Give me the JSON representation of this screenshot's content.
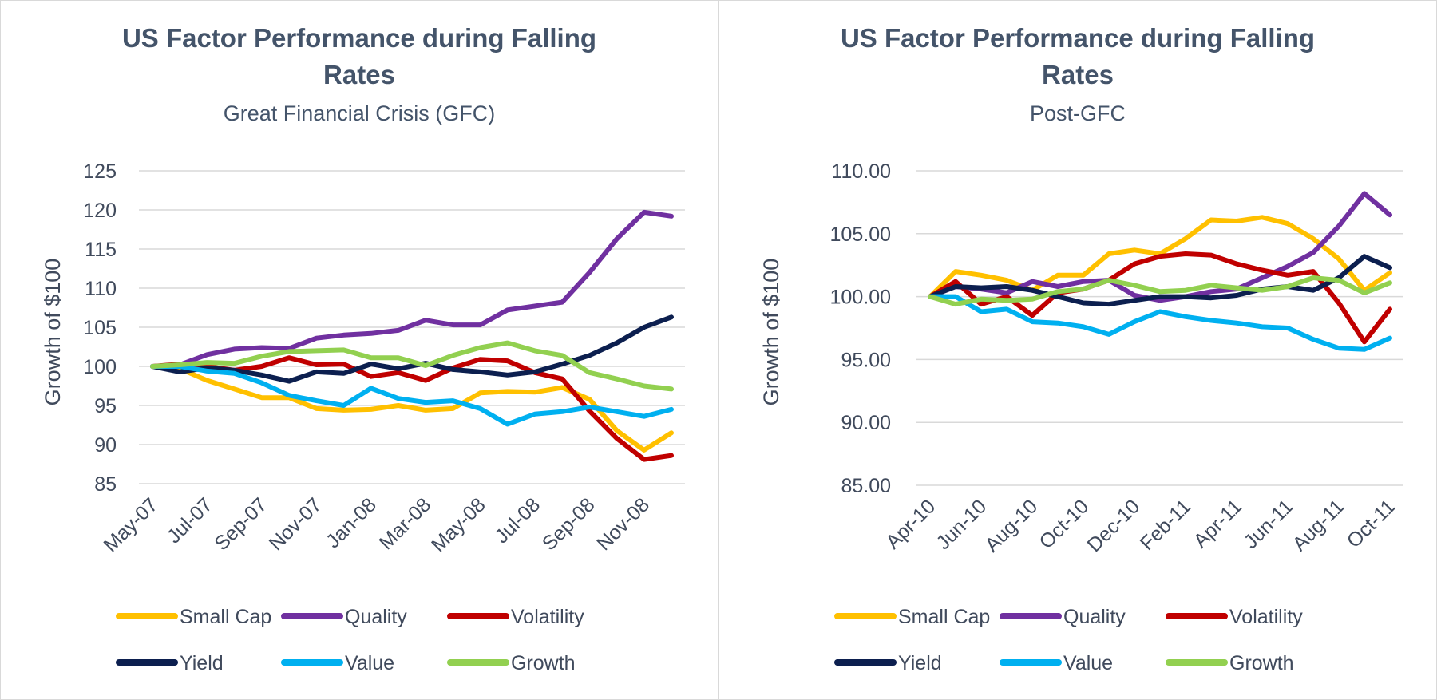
{
  "chart_data": [
    {
      "type": "line",
      "title": "US Factor Performance during Falling Rates",
      "subtitle": "Great Financial Crisis (GFC)",
      "xlabel": "",
      "ylabel": "Growth of $100",
      "ylim": [
        85,
        125
      ],
      "yticks": [
        "125",
        "120",
        "115",
        "110",
        "105",
        "100",
        "95",
        "90",
        "85"
      ],
      "ytick_values": [
        125,
        120,
        115,
        110,
        105,
        100,
        95,
        90,
        85
      ],
      "x": [
        "May-07",
        "Jun-07",
        "Jul-07",
        "Aug-07",
        "Sep-07",
        "Oct-07",
        "Nov-07",
        "Dec-07",
        "Jan-08",
        "Feb-08",
        "Mar-08",
        "Apr-08",
        "May-08",
        "Jun-08",
        "Jul-08",
        "Aug-08",
        "Sep-08",
        "Oct-08",
        "Nov-08",
        "Dec-08"
      ],
      "xtick_labels": [
        "May-07",
        "Jul-07",
        "Sep-07",
        "Nov-07",
        "Jan-08",
        "Mar-08",
        "May-08",
        "Jul-08",
        "Sep-08",
        "Nov-08"
      ],
      "legend_position": "bottom",
      "grid": true,
      "series": [
        {
          "name": "Small Cap",
          "color": "#ffc000",
          "values": [
            100,
            99.7,
            98.2,
            97.1,
            96,
            96,
            94.6,
            94.4,
            94.5,
            95,
            94.4,
            94.6,
            96.6,
            96.8,
            96.7,
            97.3,
            95.8,
            91.8,
            89.3,
            91.5
          ]
        },
        {
          "name": "Quality",
          "color": "#7030a0",
          "values": [
            100,
            100.2,
            101.5,
            102.2,
            102.4,
            102.3,
            103.6,
            104,
            104.2,
            104.6,
            105.9,
            105.3,
            105.3,
            107.2,
            107.7,
            108.2,
            112,
            116.3,
            119.7,
            119.2
          ]
        },
        {
          "name": "Volatility",
          "color": "#c00000",
          "values": [
            100,
            100.3,
            100,
            99.5,
            100,
            101.1,
            100.2,
            100.3,
            98.7,
            99.2,
            98.2,
            99.8,
            100.9,
            100.7,
            99.2,
            98.4,
            94.3,
            90.8,
            88.1,
            88.6
          ]
        },
        {
          "name": "Yield",
          "color": "#0c1f4f",
          "values": [
            100,
            99.3,
            99.8,
            99.5,
            98.9,
            98.1,
            99.3,
            99.1,
            100.3,
            99.7,
            100.4,
            99.6,
            99.3,
            98.9,
            99.3,
            100.3,
            101.4,
            103,
            105,
            106.3
          ]
        },
        {
          "name": "Value",
          "color": "#00b0f0",
          "values": [
            100,
            100,
            99.4,
            99.1,
            97.9,
            96.3,
            95.6,
            95,
            97.2,
            95.9,
            95.4,
            95.6,
            94.6,
            92.6,
            93.9,
            94.2,
            94.8,
            94.2,
            93.6,
            94.5
          ]
        },
        {
          "name": "Growth",
          "color": "#92d050",
          "values": [
            100,
            100.2,
            100.5,
            100.4,
            101.3,
            101.9,
            102,
            102.1,
            101.1,
            101.1,
            100.1,
            101.4,
            102.4,
            103,
            102,
            101.4,
            99.2,
            98.4,
            97.5,
            97.1
          ]
        }
      ]
    },
    {
      "type": "line",
      "title": "US Factor Performance during Falling Rates",
      "subtitle": "Post-GFC",
      "xlabel": "",
      "ylabel": "Growth of $100",
      "ylim": [
        85,
        110
      ],
      "yticks": [
        "110.00",
        "105.00",
        "100.00",
        "95.00",
        "90.00",
        "85.00"
      ],
      "ytick_values": [
        110,
        105,
        100,
        95,
        90,
        85
      ],
      "x": [
        "Apr-10",
        "May-10",
        "Jun-10",
        "Jul-10",
        "Aug-10",
        "Sep-10",
        "Oct-10",
        "Nov-10",
        "Dec-10",
        "Jan-11",
        "Feb-11",
        "Mar-11",
        "Apr-11",
        "May-11",
        "Jun-11",
        "Jul-11",
        "Aug-11",
        "Sep-11",
        "Oct-11"
      ],
      "xtick_labels": [
        "Apr-10",
        "Jun-10",
        "Aug-10",
        "Oct-10",
        "Dec-10",
        "Feb-11",
        "Apr-11",
        "Jun-11",
        "Aug-11",
        "Oct-11"
      ],
      "legend_position": "bottom",
      "grid": true,
      "series": [
        {
          "name": "Small Cap",
          "color": "#ffc000",
          "values": [
            100,
            102,
            101.7,
            101.3,
            100.5,
            101.7,
            101.7,
            103.4,
            103.7,
            103.4,
            104.6,
            106.1,
            106,
            106.3,
            105.8,
            104.6,
            103,
            100.5,
            101.9
          ]
        },
        {
          "name": "Quality",
          "color": "#7030a0",
          "values": [
            100,
            100.8,
            100.6,
            100.3,
            101.2,
            100.8,
            101.2,
            101.3,
            100.1,
            99.7,
            100,
            100.4,
            100.6,
            101.5,
            102.4,
            103.5,
            105.6,
            108.2,
            106.5
          ]
        },
        {
          "name": "Volatility",
          "color": "#c00000",
          "values": [
            100,
            101.2,
            99.4,
            100,
            98.5,
            100.3,
            100.6,
            101.3,
            102.6,
            103.2,
            103.4,
            103.3,
            102.6,
            102.1,
            101.7,
            102,
            99.5,
            96.4,
            99
          ]
        },
        {
          "name": "Yield",
          "color": "#0c1f4f",
          "values": [
            100,
            100.8,
            100.7,
            100.8,
            100.5,
            100,
            99.5,
            99.4,
            99.7,
            100,
            100,
            99.9,
            100.1,
            100.6,
            100.8,
            100.5,
            101.5,
            103.2,
            102.3
          ]
        },
        {
          "name": "Value",
          "color": "#00b0f0",
          "values": [
            100,
            100,
            98.8,
            99,
            98,
            97.9,
            97.6,
            97,
            98,
            98.8,
            98.4,
            98.1,
            97.9,
            97.6,
            97.5,
            96.6,
            95.9,
            95.8,
            96.7
          ]
        },
        {
          "name": "Growth",
          "color": "#92d050",
          "values": [
            100,
            99.4,
            99.8,
            99.7,
            99.8,
            100.4,
            100.6,
            101.3,
            100.9,
            100.4,
            100.5,
            100.9,
            100.7,
            100.5,
            100.8,
            101.5,
            101.3,
            100.3,
            101.1
          ]
        }
      ]
    }
  ]
}
